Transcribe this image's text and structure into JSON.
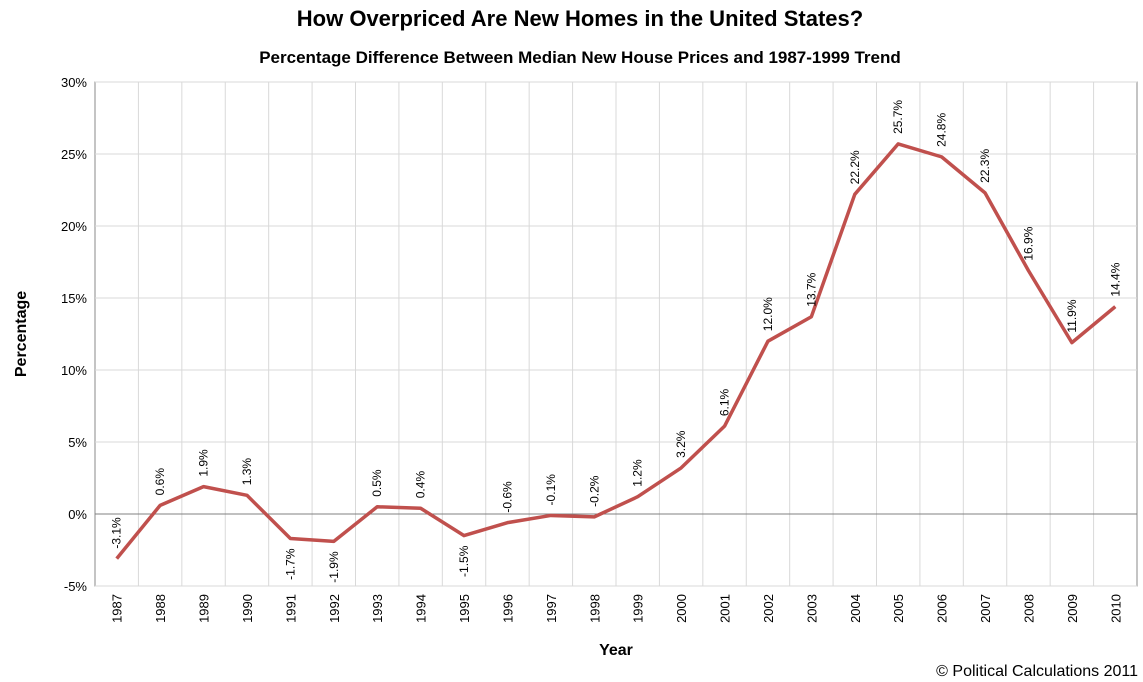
{
  "chart_data": {
    "type": "line",
    "title": "How Overpriced Are New Homes in the United States?",
    "subtitle": "Percentage Difference Between Median New House Prices and 1987-1999 Trend",
    "y_label": "Percentage",
    "x_label": "Year",
    "credit": "© Political Calculations 2011",
    "categories": [
      "1987",
      "1988",
      "1989",
      "1990",
      "1991",
      "1992",
      "1993",
      "1994",
      "1995",
      "1996",
      "1997",
      "1998",
      "1999",
      "2000",
      "2001",
      "2002",
      "2003",
      "2004",
      "2005",
      "2006",
      "2007",
      "2008",
      "2009",
      "2010"
    ],
    "series": [
      {
        "color": "#c0504d",
        "values": [
          -3.1,
          0.6,
          1.9,
          1.3,
          -1.7,
          -1.9,
          0.5,
          0.4,
          -1.5,
          -0.6,
          -0.1,
          -0.2,
          1.2,
          3.2,
          6.1,
          12.0,
          13.7,
          22.2,
          25.7,
          24.8,
          22.3,
          16.9,
          11.9,
          14.4
        ],
        "value_labels": [
          "-3.1%",
          "0.6%",
          "1.9%",
          "1.3%",
          "-1.7%",
          "-1.9%",
          "0.5%",
          "0.4%",
          "-1.5%",
          "-0.6%",
          "-0.1%",
          "-0.2%",
          "1.2%",
          "3.2%",
          "6.1%",
          "12.0%",
          "13.7%",
          "22.2%",
          "25.7%",
          "24.8%",
          "22.3%",
          "16.9%",
          "11.9%",
          "14.4%"
        ]
      }
    ],
    "ylim": [
      -5,
      30
    ],
    "yticks": [
      {
        "value": -5,
        "label": "-5%"
      },
      {
        "value": 0,
        "label": "0%"
      },
      {
        "value": 5,
        "label": "5%"
      },
      {
        "value": 10,
        "label": "10%"
      },
      {
        "value": 15,
        "label": "15%"
      },
      {
        "value": 20,
        "label": "20%"
      },
      {
        "value": 25,
        "label": "25%"
      },
      {
        "value": 30,
        "label": "30%"
      }
    ],
    "grid": true
  }
}
